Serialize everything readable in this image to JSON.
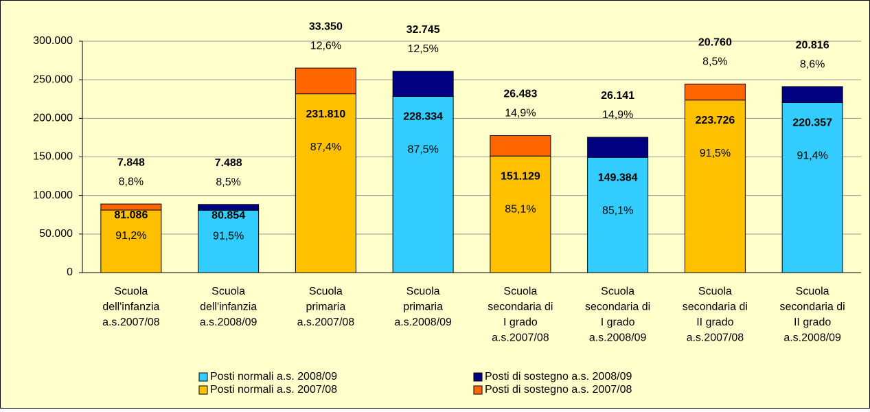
{
  "chart_data": {
    "type": "stacked_bar",
    "categories": [
      [
        "Scuola",
        "dell'infanzia",
        "a.s.2007/08"
      ],
      [
        "Scuola",
        "dell'infanzia",
        "a.s.2008/09"
      ],
      [
        "Scuola",
        "primaria",
        "a.s.2007/08"
      ],
      [
        "Scuola",
        "primaria",
        "a.s.2008/09"
      ],
      [
        "Scuola",
        "secondaria di",
        "I grado",
        "a.s.2007/08"
      ],
      [
        "Scuola",
        "secondaria di",
        "I grado",
        "a.s.2008/09"
      ],
      [
        "Scuola",
        "secondaria di",
        "II grado",
        "a.s.2007/08"
      ],
      [
        "Scuola",
        "secondaria di",
        "II grado",
        "a.s.2008/09"
      ]
    ],
    "series": [
      {
        "name": "Posti normali a.s. 2008/09",
        "color": "#33ccff",
        "role": "base",
        "values": [
          null,
          80854,
          null,
          228334,
          null,
          149384,
          null,
          220357
        ],
        "value_labels": [
          null,
          "80.854",
          null,
          "228.334",
          null,
          "149.384",
          null,
          "220.357"
        ],
        "share_labels": [
          null,
          "91,5%",
          null,
          "87,5%",
          null,
          "85,1%",
          null,
          "91,4%"
        ]
      },
      {
        "name": "Posti di sostegno a.s. 2008/09",
        "color": "#000080",
        "role": "top",
        "values": [
          null,
          7488,
          null,
          32745,
          null,
          26141,
          null,
          20816
        ],
        "value_labels": [
          null,
          "7.488",
          null,
          "32.745",
          null,
          "26.141",
          null,
          "20.816"
        ],
        "share_labels": [
          null,
          "8,5%",
          null,
          "12,5%",
          null,
          "14,9%",
          null,
          "8,6%"
        ]
      },
      {
        "name": "Posti normali a.s. 2007/08",
        "color": "#ffc000",
        "role": "base",
        "values": [
          81086,
          null,
          231810,
          null,
          151129,
          null,
          223726,
          null
        ],
        "value_labels": [
          "81.086",
          null,
          "231.810",
          null,
          "151.129",
          null,
          "223.726",
          null
        ],
        "share_labels": [
          "91,2%",
          null,
          "87,4%",
          null,
          "85,1%",
          null,
          "91,5%",
          null
        ]
      },
      {
        "name": "Posti di sostegno a.s. 2007/08",
        "color": "#ff6600",
        "role": "top",
        "values": [
          7848,
          null,
          33350,
          null,
          26483,
          null,
          20760,
          null
        ],
        "value_labels": [
          "7.848",
          null,
          "33.350",
          null,
          "26.483",
          null,
          "20.760",
          null
        ],
        "share_labels": [
          "8,8%",
          null,
          "12,6%",
          null,
          "14,9%",
          null,
          "8,5%",
          null
        ]
      }
    ],
    "ylim": [
      0,
      300000
    ],
    "yticks": [
      0,
      {
        "value": 50000,
        "label": "50.000"
      },
      {
        "value": 100000,
        "label": "100.000"
      },
      {
        "value": 150000,
        "label": "150.000"
      },
      {
        "value": 200000,
        "label": "200.000"
      },
      {
        "value": 250000,
        "label": "250.000"
      },
      {
        "value": 300000,
        "label": "300.000"
      }
    ],
    "grid": true
  }
}
